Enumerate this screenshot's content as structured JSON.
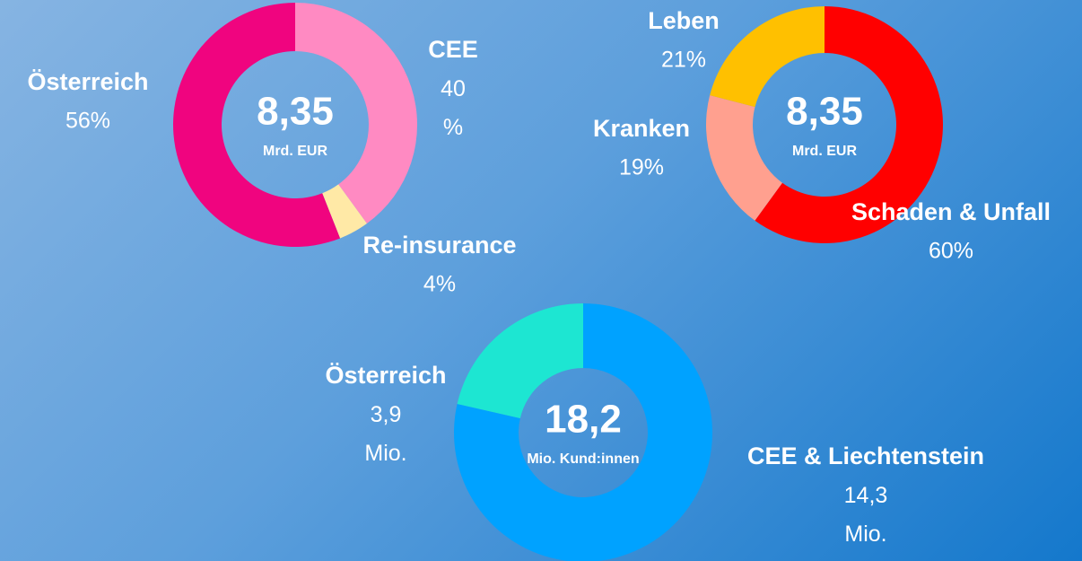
{
  "chart_data": [
    {
      "type": "pie",
      "center_value": "8,35",
      "center_unit": "Mrd. EUR",
      "categories": [
        "CEE",
        "Re-insurance",
        "Österreich"
      ],
      "values": [
        40,
        4,
        56
      ],
      "value_labels": [
        "40 %",
        "4%",
        "56%"
      ],
      "colors": [
        "#ff8ac2",
        "#ffe9a6",
        "#f0047f"
      ]
    },
    {
      "type": "pie",
      "center_value": "8,35",
      "center_unit": "Mrd. EUR",
      "categories": [
        "Schaden & Unfall",
        "Kranken",
        "Leben"
      ],
      "values": [
        60,
        19,
        21
      ],
      "value_labels": [
        "60%",
        "19%",
        "21%"
      ],
      "colors": [
        "#ff0000",
        "#ffa08f",
        "#ffc000"
      ]
    },
    {
      "type": "pie",
      "center_value": "18,2",
      "center_unit": "Mio. Kund:innen",
      "categories": [
        "CEE & Liechtenstein",
        "Österreich"
      ],
      "values": [
        14.3,
        3.9
      ],
      "value_labels": [
        "14,3 Mio.",
        "3,9 Mio."
      ],
      "colors": [
        "#00a2ff",
        "#1de6d2"
      ]
    }
  ]
}
